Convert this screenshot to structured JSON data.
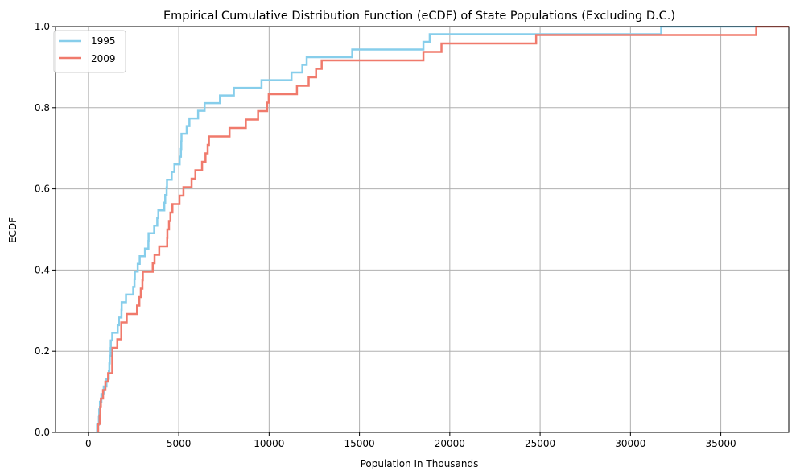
{
  "chart_data": {
    "type": "line",
    "subtype": "ecdf-step",
    "title": "Empirical Cumulative Distribution Function (eCDF) of State Populations (Excluding D.C.)",
    "xlabel": "Population In Thousands",
    "ylabel": "ECDF",
    "xlim": [
      -1820,
      38760
    ],
    "ylim": [
      0,
      1
    ],
    "xticks": [
      0,
      5000,
      10000,
      15000,
      20000,
      25000,
      30000,
      35000
    ],
    "xtick_labels": [
      "0",
      "5000",
      "10000",
      "15000",
      "20000",
      "25000",
      "30000",
      "35000"
    ],
    "yticks": [
      0,
      0.2,
      0.4,
      0.6,
      0.8,
      1.0
    ],
    "ytick_labels": [
      "0.0",
      "0.2",
      "0.4",
      "0.6",
      "0.8",
      "1.0"
    ],
    "grid": true,
    "legend_position": "top-left",
    "series": [
      {
        "name": "1995",
        "color": "#87CEEB",
        "values": [
          480,
          580,
          600,
          640,
          720,
          850,
          1000,
          1130,
          1160,
          1180,
          1230,
          1240,
          1320,
          1620,
          1690,
          1830,
          1840,
          2080,
          2480,
          2550,
          2570,
          2730,
          2840,
          3130,
          3320,
          3330,
          3640,
          3810,
          3870,
          4200,
          4250,
          4330,
          4350,
          4610,
          4760,
          5050,
          5120,
          5150,
          5140,
          5440,
          5590,
          6070,
          6430,
          7280,
          8050,
          9580,
          11240,
          11840,
          12080,
          14600,
          18540,
          18890,
          31700
        ]
      },
      {
        "name": "2009",
        "color": "#F07A6C",
        "values": [
          540,
          620,
          660,
          690,
          810,
          940,
          1090,
          1320,
          1320,
          1330,
          1600,
          1820,
          1820,
          2120,
          2690,
          2820,
          2900,
          2990,
          3010,
          3560,
          3660,
          3920,
          4360,
          4370,
          4460,
          4540,
          4650,
          5040,
          5260,
          5710,
          5920,
          6290,
          6480,
          6600,
          6670,
          7810,
          8710,
          9390,
          9890,
          9980,
          11540,
          12190,
          12600,
          12910,
          18540,
          19540,
          24780,
          36960
        ]
      }
    ]
  }
}
